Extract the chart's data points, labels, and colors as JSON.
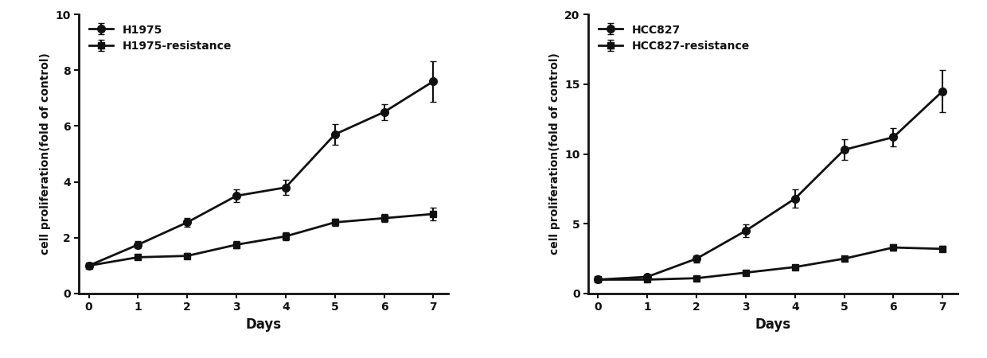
{
  "plot1": {
    "xlabel": "Days",
    "ylabel": "cell proliferation(fold of control)",
    "xlim": [
      -0.2,
      7.3
    ],
    "ylim": [
      0,
      10
    ],
    "yticks": [
      0,
      2,
      4,
      6,
      8,
      10
    ],
    "xticks": [
      0,
      1,
      2,
      3,
      4,
      5,
      6,
      7
    ],
    "series": [
      {
        "label": "H1975",
        "x": [
          0,
          1,
          2,
          3,
          4,
          5,
          6,
          7
        ],
        "y": [
          1.0,
          1.75,
          2.55,
          3.5,
          3.8,
          5.7,
          6.5,
          7.6
        ],
        "yerr": [
          0.08,
          0.12,
          0.15,
          0.22,
          0.28,
          0.38,
          0.28,
          0.72
        ],
        "marker": "o",
        "markersize": 7
      },
      {
        "label": "H1975-resistance",
        "x": [
          0,
          1,
          2,
          3,
          4,
          5,
          6,
          7
        ],
        "y": [
          1.0,
          1.3,
          1.35,
          1.75,
          2.05,
          2.55,
          2.7,
          2.85
        ],
        "yerr": [
          0.06,
          0.08,
          0.1,
          0.12,
          0.15,
          0.12,
          0.15,
          0.22
        ],
        "marker": "s",
        "markersize": 6
      }
    ]
  },
  "plot2": {
    "xlabel": "Days",
    "ylabel": "cell proliferation(fold of control)",
    "xlim": [
      -0.2,
      7.3
    ],
    "ylim": [
      0,
      20
    ],
    "yticks": [
      0,
      5,
      10,
      15,
      20
    ],
    "xticks": [
      0,
      1,
      2,
      3,
      4,
      5,
      6,
      7
    ],
    "series": [
      {
        "label": "HCC827",
        "x": [
          0,
          1,
          2,
          3,
          4,
          5,
          6,
          7
        ],
        "y": [
          1.0,
          1.2,
          2.5,
          4.5,
          6.8,
          10.3,
          11.2,
          14.5
        ],
        "yerr": [
          0.08,
          0.15,
          0.25,
          0.45,
          0.65,
          0.75,
          0.65,
          1.5
        ],
        "marker": "o",
        "markersize": 7
      },
      {
        "label": "HCC827-resistance",
        "x": [
          0,
          1,
          2,
          3,
          4,
          5,
          6,
          7
        ],
        "y": [
          1.0,
          1.0,
          1.1,
          1.5,
          1.9,
          2.5,
          3.3,
          3.2
        ],
        "yerr": [
          0.06,
          0.07,
          0.1,
          0.15,
          0.15,
          0.18,
          0.22,
          0.2
        ],
        "marker": "s",
        "markersize": 6
      }
    ]
  },
  "line_color": "#111111",
  "background_color": "#ffffff",
  "linewidth": 2.0,
  "capsize": 3,
  "elinewidth": 1.5,
  "legend_fontsize": 10,
  "axis_label_fontsize": 10,
  "tick_fontsize": 10,
  "xlabel_fontsize": 12
}
